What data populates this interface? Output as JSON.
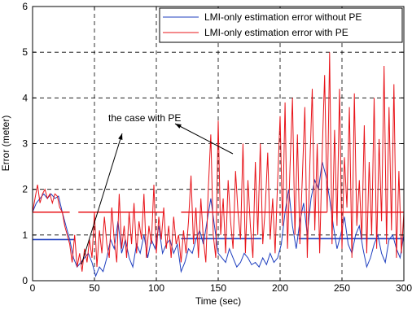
{
  "chart_data": {
    "type": "line",
    "xlabel": "Time (sec)",
    "ylabel": "Error (meter)",
    "xlim": [
      0,
      300
    ],
    "ylim": [
      0,
      6
    ],
    "xticks": [
      "0",
      "50",
      "100",
      "150",
      "200",
      "250",
      "300"
    ],
    "yticks": [
      "0",
      "1",
      "2",
      "3",
      "4",
      "5",
      "6"
    ],
    "grid": true,
    "legend_position": "top-right",
    "legend": [
      "LMI-only estimation error without PE",
      "LMI-only estimation error with PE"
    ],
    "colors": {
      "series_blue": "#1f3fbf",
      "series_red": "#e8141a",
      "axes": "#000000"
    },
    "annotation": {
      "text": "the case with PE",
      "arrow_targets": [
        {
          "x": 20,
          "y": 0.25
        },
        {
          "x": 145,
          "y": 2.55
        }
      ]
    },
    "series": [
      {
        "name": "LMI-only estimation error without PE",
        "x": [
          0,
          3,
          6,
          9,
          12,
          15,
          18,
          21,
          24,
          27,
          30,
          33,
          36,
          39,
          42,
          45,
          48,
          51,
          54,
          57,
          60,
          63,
          66,
          69,
          72,
          75,
          78,
          81,
          84,
          87,
          90,
          93,
          96,
          99,
          102,
          105,
          108,
          111,
          114,
          117,
          120,
          123,
          126,
          129,
          132,
          135,
          138,
          141,
          144,
          147,
          150,
          153,
          156,
          159,
          162,
          165,
          168,
          171,
          174,
          177,
          180,
          183,
          186,
          189,
          192,
          195,
          198,
          201,
          204,
          207,
          210,
          213,
          216,
          219,
          222,
          225,
          228,
          231,
          234,
          237,
          240,
          243,
          246,
          249,
          252,
          255,
          258,
          261,
          264,
          267,
          270,
          273,
          276,
          279,
          282,
          285,
          288,
          291,
          294,
          297,
          300
        ],
        "y": [
          1.5,
          1.7,
          1.8,
          1.9,
          1.8,
          1.9,
          1.8,
          1.85,
          1.5,
          1.2,
          0.9,
          0.5,
          0.3,
          0.4,
          0.5,
          0.6,
          0.4,
          0.1,
          0.3,
          0.2,
          0.5,
          0.9,
          0.7,
          1.3,
          0.6,
          0.9,
          0.5,
          0.3,
          0.8,
          0.6,
          1.0,
          0.5,
          0.9,
          0.7,
          1.2,
          0.6,
          0.8,
          0.9,
          0.6,
          0.8,
          0.2,
          0.4,
          0.7,
          0.6,
          0.9,
          1.1,
          0.8,
          1.3,
          1.8,
          1.2,
          0.6,
          0.5,
          0.4,
          0.7,
          0.5,
          0.3,
          0.4,
          0.6,
          0.5,
          0.35,
          0.4,
          0.3,
          0.5,
          0.35,
          0.6,
          0.4,
          0.5,
          0.8,
          1.5,
          2.0,
          1.2,
          0.7,
          1.3,
          1.7,
          1.0,
          1.8,
          2.2,
          2.0,
          2.6,
          2.3,
          1.8,
          1.2,
          0.7,
          1.0,
          1.4,
          0.8,
          0.6,
          1.0,
          1.2,
          0.7,
          0.3,
          0.5,
          0.8,
          1.0,
          0.6,
          0.4,
          0.9,
          1.0,
          0.7,
          0.5,
          1.0
        ],
        "constant_segments": [
          {
            "x": [
              0,
              34
            ],
            "y": 0.9
          },
          {
            "x": 120,
            "x_end": 185,
            "y": 0.92
          },
          {
            "x_end": 300,
            "x": 215,
            "y": 0.92
          }
        ]
      },
      {
        "name": "LMI-only estimation error with PE",
        "x": [
          0,
          2,
          4,
          6,
          8,
          10,
          12,
          14,
          16,
          18,
          20,
          22,
          24,
          26,
          28,
          30,
          32,
          34,
          36,
          38,
          40,
          42,
          44,
          46,
          48,
          50,
          52,
          54,
          56,
          58,
          60,
          62,
          64,
          66,
          68,
          70,
          72,
          74,
          76,
          78,
          80,
          82,
          84,
          86,
          88,
          90,
          92,
          94,
          96,
          98,
          100,
          102,
          104,
          106,
          108,
          110,
          112,
          114,
          116,
          118,
          120,
          122,
          124,
          126,
          128,
          130,
          132,
          134,
          136,
          138,
          140,
          142,
          144,
          146,
          148,
          150,
          152,
          154,
          156,
          158,
          160,
          162,
          164,
          166,
          168,
          170,
          172,
          174,
          176,
          178,
          180,
          182,
          184,
          186,
          188,
          190,
          192,
          194,
          196,
          198,
          200,
          202,
          204,
          206,
          208,
          210,
          212,
          214,
          216,
          218,
          220,
          222,
          224,
          226,
          228,
          230,
          232,
          234,
          236,
          238,
          240,
          242,
          244,
          246,
          248,
          250,
          252,
          254,
          256,
          258,
          260,
          262,
          264,
          266,
          268,
          270,
          272,
          274,
          276,
          278,
          280,
          282,
          284,
          286,
          288,
          290,
          292,
          294,
          296,
          298,
          300
        ],
        "y": [
          1.5,
          1.8,
          2.1,
          1.7,
          1.9,
          2.0,
          1.8,
          1.9,
          1.7,
          1.9,
          1.85,
          1.6,
          1.5,
          1.2,
          1.0,
          0.8,
          0.4,
          1.0,
          0.3,
          0.6,
          0.2,
          0.7,
          0.4,
          0.9,
          0.5,
          1.5,
          0.3,
          1.1,
          0.6,
          1.4,
          0.8,
          0.5,
          1.6,
          0.9,
          0.4,
          1.9,
          0.7,
          1.2,
          0.5,
          1.5,
          0.8,
          1.7,
          0.6,
          1.3,
          0.9,
          1.9,
          0.5,
          1.2,
          0.8,
          2.1,
          0.6,
          1.4,
          0.9,
          1.6,
          0.7,
          1.2,
          0.5,
          1.4,
          0.8,
          1.0,
          0.4,
          1.1,
          0.6,
          1.3,
          2.3,
          0.8,
          1.6,
          0.5,
          1.8,
          0.9,
          0.4,
          2.0,
          3.2,
          1.0,
          0.5,
          3.5,
          1.0,
          1.8,
          0.6,
          2.2,
          1.3,
          0.7,
          2.4,
          1.5,
          0.9,
          3.0,
          0.6,
          2.2,
          1.2,
          0.5,
          2.6,
          1.0,
          3.0,
          0.8,
          1.6,
          2.8,
          0.9,
          1.8,
          0.6,
          2.2,
          3.6,
          1.2,
          3.9,
          0.7,
          2.5,
          4.0,
          1.0,
          3.2,
          0.8,
          2.3,
          3.8,
          0.5,
          2.5,
          4.2,
          1.1,
          3.0,
          0.6,
          2.8,
          4.5,
          1.5,
          5.0,
          0.8,
          3.3,
          1.2,
          4.2,
          0.7,
          2.7,
          1.6,
          3.8,
          0.5,
          4.1,
          1.2,
          2.2,
          0.9,
          3.4,
          0.6,
          2.6,
          1.0,
          4.0,
          0.7,
          3.1,
          1.3,
          4.7,
          0.8,
          3.8,
          1.1,
          4.3,
          0.5,
          2.4,
          0.6,
          1.5
        ],
        "constant_segments": [
          {
            "x": [
              0,
              30
            ],
            "y": 1.5
          },
          {
            "x": [
              37,
              106
            ],
            "y": 1.5
          },
          {
            "x": 120,
            "x_end": 238,
            "y": 1.5
          },
          {
            "x_end": 300,
            "x": 241,
            "y": 1.5
          }
        ]
      }
    ]
  }
}
